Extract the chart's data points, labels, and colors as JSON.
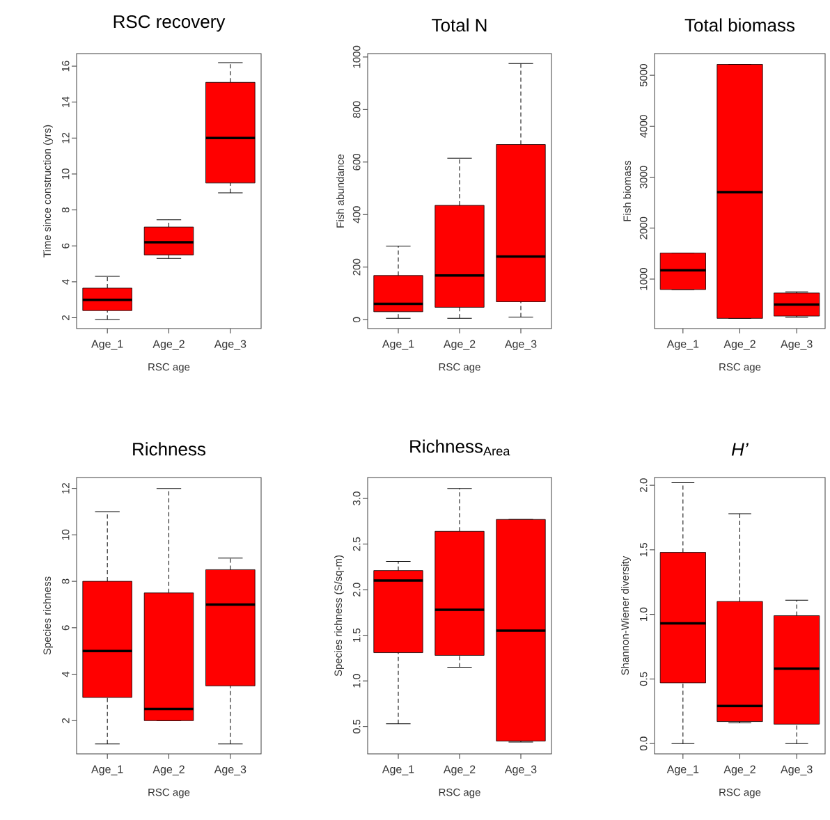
{
  "chart_data": [
    {
      "type": "box",
      "title": "RSC recovery",
      "xlabel": "RSC age",
      "ylabel": "Time since construction (yrs)",
      "categories": [
        "Age_1",
        "Age_2",
        "Age_3"
      ],
      "color": "#ff0000",
      "ylim": [
        1.4,
        16.7
      ],
      "yticks": [
        2,
        4,
        6,
        8,
        10,
        12,
        14,
        16
      ],
      "boxes": [
        {
          "low": 1.9,
          "q1": 2.4,
          "median": 3.0,
          "q3": 3.65,
          "high": 4.3
        },
        {
          "low": 5.3,
          "q1": 5.5,
          "median": 6.2,
          "q3": 7.05,
          "high": 7.45
        },
        {
          "low": 8.95,
          "q1": 9.5,
          "median": 12.0,
          "q3": 15.1,
          "high": 16.2
        }
      ]
    },
    {
      "type": "box",
      "title": "Total N",
      "xlabel": "RSC age",
      "ylabel": "Fish abundance",
      "categories": [
        "Age_1",
        "Age_2",
        "Age_3"
      ],
      "color": "#ff0000",
      "ylim": [
        -34,
        1013
      ],
      "yticks": [
        0,
        200,
        400,
        600,
        800,
        1000
      ],
      "boxes": [
        {
          "low": 5,
          "q1": 30,
          "median": 60,
          "q3": 168,
          "high": 280
        },
        {
          "low": 5,
          "q1": 47,
          "median": 168,
          "q3": 435,
          "high": 615
        },
        {
          "low": 10,
          "q1": 68,
          "median": 240,
          "q3": 667,
          "high": 975
        }
      ]
    },
    {
      "type": "box",
      "title": "Total biomass",
      "xlabel": "RSC age",
      "ylabel": "Fish biomass",
      "categories": [
        "Age_1",
        "Age_2",
        "Age_3"
      ],
      "color": "#ff0000",
      "ylim": [
        30,
        5425
      ],
      "yticks": [
        1000,
        2000,
        3000,
        4000,
        5000
      ],
      "boxes": [
        {
          "low": 796,
          "q1": 796,
          "median": 1172,
          "q3": 1512,
          "high": 1512
        },
        {
          "low": 230,
          "q1": 230,
          "median": 2708,
          "q3": 5213,
          "high": 5213
        },
        {
          "low": 253,
          "q1": 275,
          "median": 502,
          "q3": 728,
          "high": 750
        }
      ]
    },
    {
      "type": "box",
      "title": "Richness",
      "xlabel": "RSC age",
      "ylabel": "Species richness",
      "categories": [
        "Age_1",
        "Age_2",
        "Age_3"
      ],
      "color": "#ff0000",
      "ylim": [
        0.57,
        12.47
      ],
      "yticks": [
        2,
        4,
        6,
        8,
        10,
        12
      ],
      "boxes": [
        {
          "low": 1,
          "q1": 3,
          "median": 5,
          "q3": 8,
          "high": 11
        },
        {
          "low": 2,
          "q1": 2,
          "median": 2.5,
          "q3": 7.5,
          "high": 12
        },
        {
          "low": 1,
          "q1": 3.5,
          "median": 7,
          "q3": 8.5,
          "high": 9
        }
      ]
    },
    {
      "type": "box",
      "title": "Richness$_{Area}$",
      "xlabel": "RSC age",
      "ylabel": "Species richness (S/sq-m)",
      "categories": [
        "Age_1",
        "Age_2",
        "Age_3"
      ],
      "color": "#ff0000",
      "ylim": [
        0.2,
        3.23
      ],
      "yticks": [
        {
          "value": 0.5,
          "label": "0.5"
        },
        {
          "value": 1.0,
          "label": "1.0"
        },
        {
          "value": 1.5,
          "label": "1.5"
        },
        {
          "value": 2.0,
          "label": "2.0"
        },
        {
          "value": 2.5,
          "label": "2.5"
        },
        {
          "value": 3.0,
          "label": "3.0"
        }
      ],
      "boxes": [
        {
          "low": 0.53,
          "q1": 1.31,
          "median": 2.1,
          "q3": 2.21,
          "high": 2.31
        },
        {
          "low": 1.15,
          "q1": 1.28,
          "median": 1.78,
          "q3": 2.64,
          "high": 3.11
        },
        {
          "low": 0.33,
          "q1": 0.34,
          "median": 1.55,
          "q3": 2.77,
          "high": 2.77
        }
      ]
    },
    {
      "type": "box",
      "title": "*H’*",
      "xlabel": "RSC age",
      "ylabel": "Shannon-Wiener diversity",
      "categories": [
        "Age_1",
        "Age_2",
        "Age_3"
      ],
      "color": "#ff0000",
      "ylim": [
        -0.08,
        2.06
      ],
      "yticks": [
        {
          "value": 0.0,
          "label": "0.0"
        },
        {
          "value": 0.5,
          "label": "0.5"
        },
        {
          "value": 1.0,
          "label": "1.0"
        },
        {
          "value": 1.5,
          "label": "1.5"
        },
        {
          "value": 2.0,
          "label": "2.0"
        }
      ],
      "boxes": [
        {
          "low": 0,
          "q1": 0.47,
          "median": 0.93,
          "q3": 1.48,
          "high": 2.02
        },
        {
          "low": 0.16,
          "q1": 0.17,
          "median": 0.29,
          "q3": 1.1,
          "high": 1.78
        },
        {
          "low": 0,
          "q1": 0.15,
          "median": 0.58,
          "q3": 0.99,
          "high": 1.11
        }
      ]
    }
  ]
}
